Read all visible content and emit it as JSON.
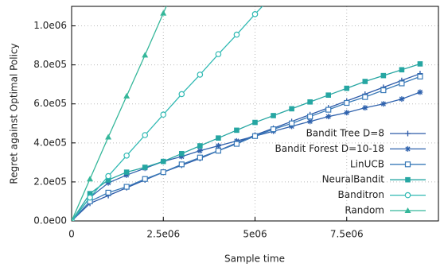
{
  "chart_data": {
    "type": "line",
    "xlabel": "Sample time",
    "ylabel": "Regret against Optimal Policy",
    "x": [
      0,
      500000,
      1000000,
      1500000,
      2000000,
      2500000,
      3000000,
      3500000,
      4000000,
      4500000,
      5000000,
      5500000,
      6000000,
      6500000,
      7000000,
      7500000,
      8000000,
      8500000,
      9000000,
      9500000
    ],
    "series": [
      {
        "name": "Bandit Tree D=8",
        "color": "#2c5aa8",
        "marker": "plus",
        "values": [
          0,
          90000,
          130000,
          170000,
          210000,
          250000,
          285000,
          320000,
          360000,
          400000,
          440000,
          475000,
          510000,
          545000,
          580000,
          615000,
          650000,
          685000,
          720000,
          755000
        ]
      },
      {
        "name": "Bandit Forest D=10-18",
        "color": "#2f62ad",
        "marker": "star",
        "values": [
          0,
          120000,
          195000,
          235000,
          270000,
          305000,
          330000,
          360000,
          385000,
          410000,
          435000,
          460000,
          485000,
          510000,
          535000,
          555000,
          580000,
          600000,
          625000,
          660000
        ]
      },
      {
        "name": "LinUCB",
        "color": "#3a7ab8",
        "marker": "square-open",
        "values": [
          0,
          100000,
          145000,
          175000,
          215000,
          250000,
          290000,
          325000,
          360000,
          395000,
          435000,
          470000,
          500000,
          535000,
          570000,
          605000,
          635000,
          670000,
          705000,
          740000
        ]
      },
      {
        "name": "NeuralBandit",
        "color": "#26a6a2",
        "marker": "square",
        "values": [
          0,
          140000,
          210000,
          250000,
          275000,
          305000,
          345000,
          385000,
          425000,
          465000,
          505000,
          540000,
          575000,
          610000,
          645000,
          680000,
          715000,
          745000,
          775000,
          805000
        ]
      },
      {
        "name": "Banditron",
        "color": "#30b9b3",
        "marker": "circle-open",
        "values": [
          0,
          120000,
          230000,
          335000,
          440000,
          545000,
          650000,
          750000,
          855000,
          955000,
          1060000,
          1160000,
          null,
          null,
          null,
          null,
          null,
          null,
          null,
          null
        ]
      },
      {
        "name": "Random",
        "color": "#35b79a",
        "marker": "triangle",
        "values": [
          0,
          215000,
          430000,
          640000,
          850000,
          1065000,
          1280000,
          null,
          null,
          null,
          null,
          null,
          null,
          null,
          null,
          null,
          null,
          null,
          null,
          null
        ]
      }
    ],
    "xlim": [
      0,
      10000000
    ],
    "xticks": [
      0,
      {
        "value": 2500000,
        "label": "2.5e06"
      },
      {
        "value": 5000000,
        "label": "5e06"
      },
      {
        "value": 7500000,
        "label": "7.5e06"
      }
    ],
    "ylim": [
      0,
      1100000
    ],
    "yticks": [
      {
        "value": 0,
        "label": "0.0e00"
      },
      {
        "value": 200000,
        "label": "2.0e05"
      },
      {
        "value": 400000,
        "label": "4.0e05"
      },
      {
        "value": 600000,
        "label": "6.0e05"
      },
      {
        "value": 800000,
        "label": "8.0e05"
      },
      {
        "value": 1000000,
        "label": "1.0e06"
      }
    ],
    "grid": true,
    "legend": "lower-right"
  }
}
